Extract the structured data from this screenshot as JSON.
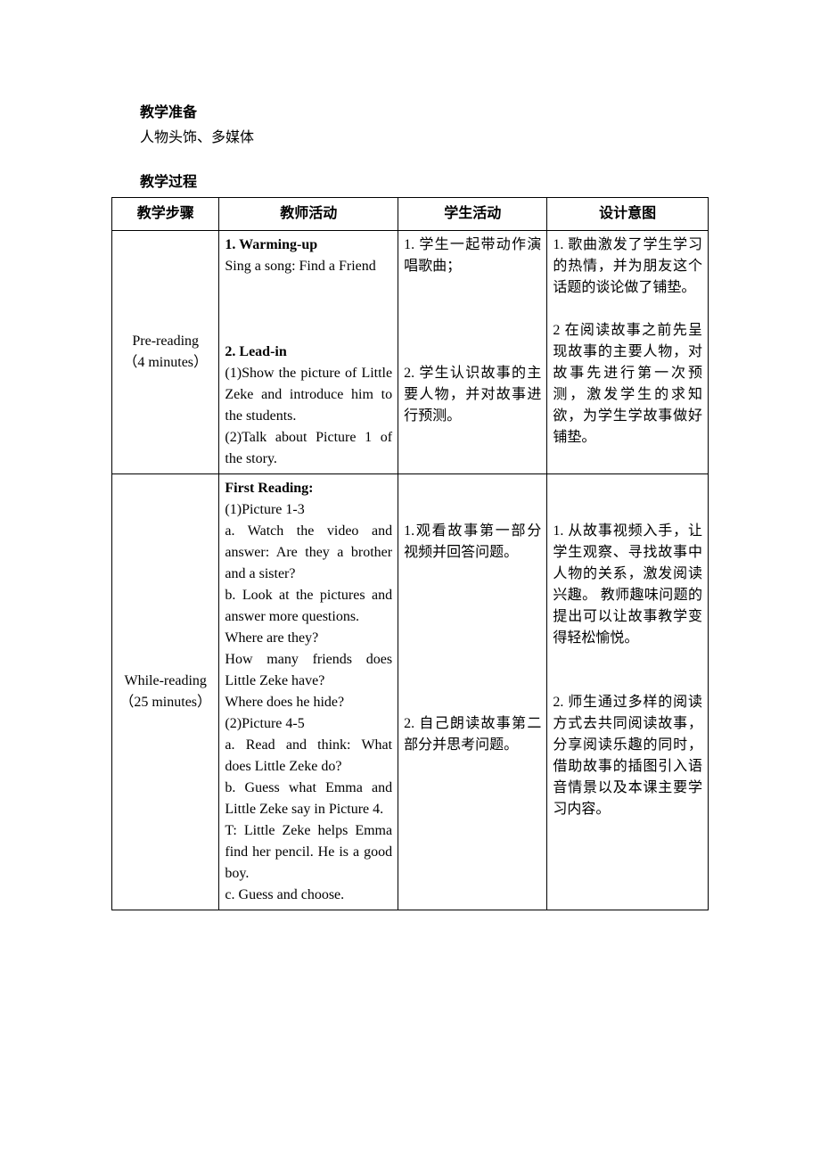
{
  "sections": {
    "prep_title": "教学准备",
    "prep_body": "人物头饰、多媒体",
    "proc_title": "教学过程"
  },
  "table": {
    "headers": [
      "教学步骤",
      "教师活动",
      "学生活动",
      "设计意图"
    ],
    "rows": [
      {
        "step_line1": "Pre-reading",
        "step_line2": "（4 minutes）",
        "teacher_blocks": [
          {
            "bold": true,
            "text": "1. Warming-up"
          },
          {
            "text": "Sing a song: Find a Friend"
          },
          {
            "spacer": true
          },
          {
            "spacer": true
          },
          {
            "spacer": true
          },
          {
            "bold": true,
            "text": "2. Lead-in"
          },
          {
            "text": "(1)Show the picture of Little Zeke and introduce him to the students."
          },
          {
            "text": "(2)Talk about Picture 1 of the story."
          }
        ],
        "student_blocks": [
          {
            "text": "1. 学生一起带动作演唱歌曲；"
          },
          {
            "spacer": true
          },
          {
            "spacer": true
          },
          {
            "spacer": true
          },
          {
            "spacer": true
          },
          {
            "text": "2. 学生认识故事的主要人物，并对故事进行预测。"
          }
        ],
        "intent_blocks": [
          {
            "text": "1. 歌曲激发了学生学习的热情，并为朋友这个话题的谈论做了铺垫。"
          },
          {
            "spacer": true
          },
          {
            "text": "2 在阅读故事之前先呈现故事的主要人物，对故事先进行第一次预测，激发学生的求知欲，为学生学故事做好铺垫。"
          }
        ]
      },
      {
        "step_line1": "While-reading",
        "step_line2": "（25 minutes）",
        "teacher_blocks": [
          {
            "bold": true,
            "text": "First Reading:"
          },
          {
            "text": "(1)Picture 1-3"
          },
          {
            "text": "a. Watch the video and answer: Are they a brother and a sister?"
          },
          {
            "text": "b. Look at the pictures and answer more questions."
          },
          {
            "text": "Where are they?"
          },
          {
            "text": "How many friends does Little Zeke have?"
          },
          {
            "text": "Where does he hide?"
          },
          {
            "text": "(2)Picture 4-5"
          },
          {
            "text": "a. Read and think: What does Little Zeke do?"
          },
          {
            "text": "b. Guess what Emma and Little Zeke say in Picture 4."
          },
          {
            "text": "T: Little Zeke helps Emma find her pencil. He is a good boy."
          },
          {
            "text": "c. Guess and choose."
          }
        ],
        "student_blocks": [
          {
            "spacer": true
          },
          {
            "spacer": true
          },
          {
            "text": "1.观看故事第一部分视频并回答问题。"
          },
          {
            "spacer": true
          },
          {
            "spacer": true
          },
          {
            "spacer": true
          },
          {
            "spacer": true
          },
          {
            "spacer": true
          },
          {
            "spacer": true
          },
          {
            "spacer": true
          },
          {
            "text": "2. 自己朗读故事第二部分并思考问题。"
          }
        ],
        "intent_blocks": [
          {
            "spacer": true
          },
          {
            "spacer": true
          },
          {
            "text": "1. 从故事视频入手，让学生观察、寻找故事中人物的关系，激发阅读兴趣。 教师趣味问题的提出可以让故事教学变得轻松愉悦。"
          },
          {
            "spacer": true
          },
          {
            "spacer": true
          },
          {
            "text": "2. 师生通过多样的阅读方式去共同阅读故事，分享阅读乐趣的同时，借助故事的插图引入语音情景以及本课主要学习内容。"
          }
        ]
      }
    ]
  }
}
